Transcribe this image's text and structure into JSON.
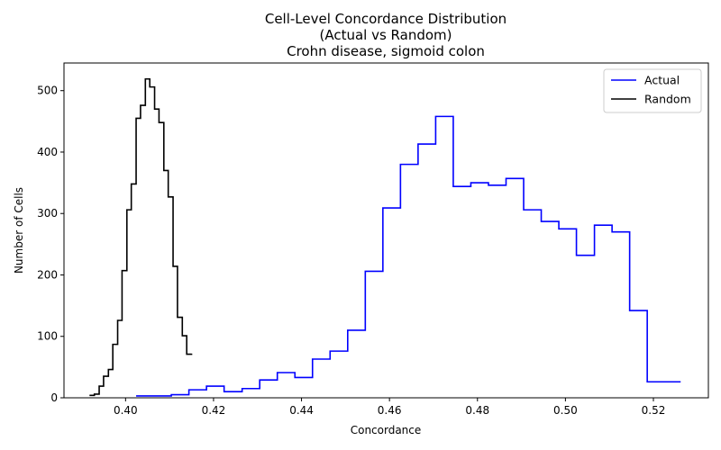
{
  "chart_data": {
    "type": "step",
    "title": [
      "Cell-Level Concordance Distribution",
      "(Actual vs Random)",
      "Crohn disease, sigmoid colon"
    ],
    "xlabel": "Concordance",
    "ylabel": "Number of Cells",
    "xlim": [
      0.386,
      0.5325
    ],
    "ylim": [
      0,
      545
    ],
    "xticks": [
      0.4,
      0.42,
      0.44,
      0.46,
      0.48,
      0.5,
      0.52
    ],
    "xtick_labels": [
      "0.40",
      "0.42",
      "0.44",
      "0.46",
      "0.48",
      "0.50",
      "0.52"
    ],
    "yticks": [
      0,
      100,
      200,
      300,
      400,
      500
    ],
    "ytick_labels": [
      "0",
      "100",
      "200",
      "300",
      "400",
      "500"
    ],
    "legend_position": "top-right",
    "grid": false,
    "series": [
      {
        "name": "Actual",
        "color": "#0000ff",
        "x": [
          0.4024,
          0.4064,
          0.4104,
          0.4144,
          0.4184,
          0.4224,
          0.4265,
          0.4305,
          0.4345,
          0.4385,
          0.4425,
          0.4465,
          0.4505,
          0.4545,
          0.4585,
          0.4625,
          0.4665,
          0.4705,
          0.4745,
          0.4785,
          0.4825,
          0.4865,
          0.4905,
          0.4945,
          0.4985,
          0.5025,
          0.5066,
          0.5106,
          0.5146,
          0.5186,
          0.5226,
          0.5262
        ],
        "y": [
          3,
          3,
          5,
          13,
          19,
          10,
          15,
          29,
          41,
          33,
          63,
          76,
          110,
          206,
          309,
          380,
          413,
          458,
          344,
          350,
          346,
          357,
          306,
          287,
          275,
          232,
          281,
          270,
          142,
          26,
          26,
          26
        ]
      },
      {
        "name": "Random",
        "color": "#000000",
        "x": [
          0.3918,
          0.3929,
          0.394,
          0.395,
          0.3961,
          0.3971,
          0.3982,
          0.3992,
          0.4003,
          0.4013,
          0.4024,
          0.4034,
          0.4045,
          0.4055,
          0.4066,
          0.4076,
          0.4087,
          0.4097,
          0.4108,
          0.4118,
          0.4129,
          0.4139,
          0.415
        ],
        "y": [
          4,
          6,
          19,
          35,
          46,
          87,
          126,
          207,
          306,
          348,
          455,
          476,
          519,
          506,
          470,
          448,
          370,
          327,
          214,
          131,
          101,
          71,
          72
        ]
      }
    ]
  }
}
